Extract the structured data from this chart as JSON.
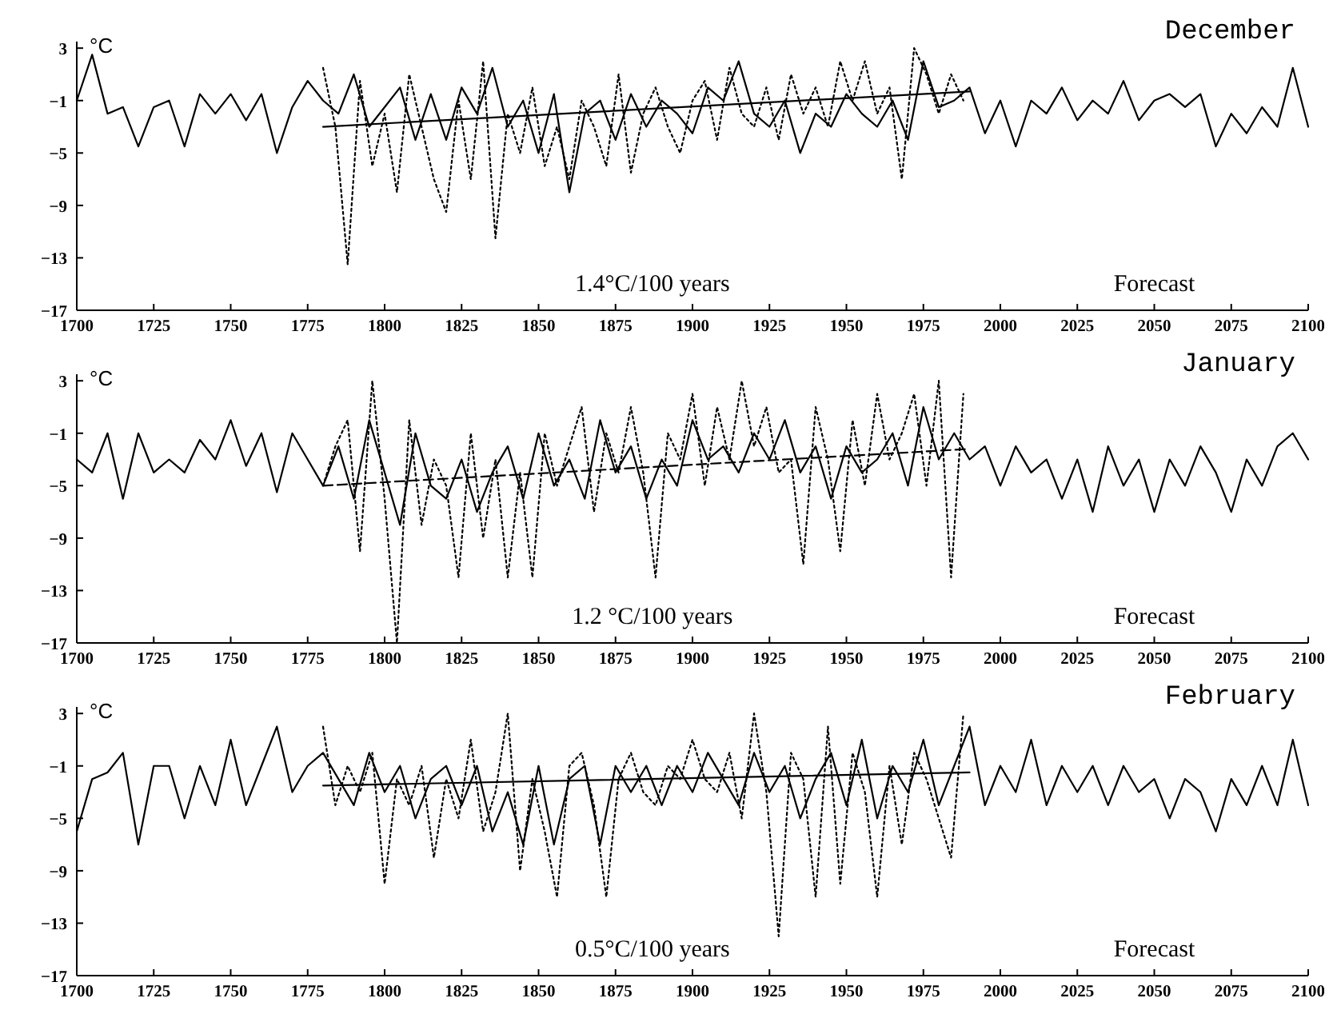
{
  "chart_data": [
    {
      "type": "line",
      "title": "December",
      "ylabel": "°C",
      "xlim": [
        1700,
        2100
      ],
      "xticks": [
        1700,
        1725,
        1750,
        1775,
        1800,
        1825,
        1850,
        1875,
        1900,
        1925,
        1950,
        1975,
        2000,
        2025,
        2050,
        2075,
        2100
      ],
      "ylim": [
        -17,
        3.5
      ],
      "yticks": [
        3,
        -1,
        -5,
        -9,
        -13,
        -17
      ],
      "grid": false,
      "marker": "none",
      "annotations": [
        "1.4°C/100 years",
        "Forecast"
      ],
      "x": [
        1700,
        1705,
        1710,
        1715,
        1720,
        1725,
        1730,
        1735,
        1740,
        1745,
        1750,
        1755,
        1760,
        1765,
        1770,
        1775,
        1780,
        1785,
        1790,
        1795,
        1800,
        1805,
        1810,
        1815,
        1820,
        1825,
        1830,
        1835,
        1840,
        1845,
        1850,
        1855,
        1860,
        1865,
        1870,
        1875,
        1880,
        1885,
        1890,
        1895,
        1900,
        1905,
        1910,
        1915,
        1920,
        1925,
        1930,
        1935,
        1940,
        1945,
        1950,
        1955,
        1960,
        1965,
        1970,
        1975,
        1980,
        1985,
        1990,
        1995,
        2000,
        2005,
        2010,
        2015,
        2020,
        2025,
        2030,
        2035,
        2040,
        2045,
        2050,
        2055,
        2060,
        2065,
        2070,
        2075,
        2080,
        2085,
        2090,
        2095,
        2100
      ],
      "series": [
        {
          "color": "#000000",
          "line_style": "solid",
          "values": [
            -1,
            2.5,
            -2,
            -1.5,
            -4.5,
            -1.5,
            -1,
            -4.5,
            -0.5,
            -2,
            -0.5,
            -2.5,
            -0.5,
            -5,
            -1.5,
            0.5,
            -1,
            -2,
            1,
            -3,
            -1.5,
            0,
            -4,
            -0.5,
            -4,
            0,
            -2,
            1.5,
            -3,
            -1,
            -5,
            -0.5,
            -8,
            -2,
            -1,
            -4,
            -0.5,
            -3,
            -1,
            -2,
            -3.5,
            0,
            -1,
            2,
            -2,
            -3,
            -1,
            -5,
            -2,
            -3,
            -0.5,
            -2,
            -3,
            -1,
            -4,
            2,
            -1.5,
            -1,
            0,
            -3.5,
            -1,
            -4.5,
            -1,
            -2,
            0,
            -2.5,
            -1,
            -2,
            0.5,
            -2.5,
            -1,
            -0.5,
            -1.5,
            -0.5,
            -4.5,
            -2,
            -3.5,
            -1.5,
            -3,
            1.5,
            -3
          ]
        },
        {
          "color": "#000000",
          "line_style": "dotted",
          "x": [
            1780,
            1784,
            1788,
            1792,
            1796,
            1800,
            1804,
            1808,
            1812,
            1816,
            1820,
            1824,
            1828,
            1832,
            1836,
            1840,
            1844,
            1848,
            1852,
            1856,
            1860,
            1864,
            1868,
            1872,
            1876,
            1880,
            1884,
            1888,
            1892,
            1896,
            1900,
            1904,
            1908,
            1912,
            1916,
            1920,
            1924,
            1928,
            1932,
            1936,
            1940,
            1944,
            1948,
            1952,
            1956,
            1960,
            1964,
            1968,
            1972,
            1976,
            1980,
            1984,
            1988
          ],
          "values": [
            1.5,
            -3,
            -13.5,
            0.5,
            -6,
            -2,
            -8,
            1,
            -3,
            -7,
            -9.5,
            -1,
            -7,
            2,
            -11.5,
            -2,
            -5,
            0,
            -6,
            -3,
            -7,
            -1,
            -3,
            -6,
            1,
            -6.5,
            -2,
            0,
            -3,
            -5,
            -1,
            0.5,
            -4,
            1.5,
            -2,
            -3,
            0,
            -4,
            1,
            -2,
            0,
            -3,
            2,
            -1,
            2,
            -2,
            0,
            -7,
            3,
            1,
            -2,
            1,
            -1
          ]
        },
        {
          "color": "#000000",
          "line_style": "solid",
          "x": [
            1780,
            1990
          ],
          "values": [
            -3,
            -0.3
          ]
        }
      ]
    },
    {
      "type": "line",
      "title": "January",
      "ylabel": "°C",
      "xlim": [
        1700,
        2100
      ],
      "xticks": [
        1700,
        1725,
        1750,
        1775,
        1800,
        1825,
        1850,
        1875,
        1900,
        1925,
        1950,
        1975,
        2000,
        2025,
        2050,
        2075,
        2100
      ],
      "ylim": [
        -17,
        3.5
      ],
      "yticks": [
        3,
        -1,
        -5,
        -9,
        -13,
        -17
      ],
      "grid": false,
      "marker": "none",
      "annotations": [
        "1.2 °C/100 years",
        "Forecast"
      ],
      "x": [
        1700,
        1705,
        1710,
        1715,
        1720,
        1725,
        1730,
        1735,
        1740,
        1745,
        1750,
        1755,
        1760,
        1765,
        1770,
        1775,
        1780,
        1785,
        1790,
        1795,
        1800,
        1805,
        1810,
        1815,
        1820,
        1825,
        1830,
        1835,
        1840,
        1845,
        1850,
        1855,
        1860,
        1865,
        1870,
        1875,
        1880,
        1885,
        1890,
        1895,
        1900,
        1905,
        1910,
        1915,
        1920,
        1925,
        1930,
        1935,
        1940,
        1945,
        1950,
        1955,
        1960,
        1965,
        1970,
        1975,
        1980,
        1985,
        1990,
        1995,
        2000,
        2005,
        2010,
        2015,
        2020,
        2025,
        2030,
        2035,
        2040,
        2045,
        2050,
        2055,
        2060,
        2065,
        2070,
        2075,
        2080,
        2085,
        2090,
        2095,
        2100
      ],
      "series": [
        {
          "color": "#000000",
          "line_style": "solid",
          "values": [
            -3,
            -4,
            -1,
            -6,
            -1,
            -4,
            -3,
            -4,
            -1.5,
            -3,
            0,
            -3.5,
            -1,
            -5.5,
            -1,
            -3,
            -5,
            -2,
            -6,
            0,
            -4,
            -8,
            -1,
            -5,
            -6,
            -3,
            -7,
            -4,
            -2,
            -6,
            -1,
            -5,
            -3,
            -6,
            0,
            -4,
            -2,
            -6,
            -3,
            -5,
            0,
            -3,
            -2,
            -4,
            -1,
            -3,
            0,
            -4,
            -2,
            -6,
            -2,
            -4,
            -3,
            -1,
            -5,
            1,
            -3,
            -1,
            -3,
            -2,
            -5,
            -2,
            -4,
            -3,
            -6,
            -3,
            -7,
            -2,
            -5,
            -3,
            -7,
            -3,
            -5,
            -2,
            -4,
            -7,
            -3,
            -5,
            -2,
            -1,
            -3
          ]
        },
        {
          "color": "#000000",
          "line_style": "dotted",
          "x": [
            1780,
            1784,
            1788,
            1792,
            1796,
            1800,
            1804,
            1808,
            1812,
            1816,
            1820,
            1824,
            1828,
            1832,
            1836,
            1840,
            1844,
            1848,
            1852,
            1856,
            1860,
            1864,
            1868,
            1872,
            1876,
            1880,
            1884,
            1888,
            1892,
            1896,
            1900,
            1904,
            1908,
            1912,
            1916,
            1920,
            1924,
            1928,
            1932,
            1936,
            1940,
            1944,
            1948,
            1952,
            1956,
            1960,
            1964,
            1968,
            1972,
            1976,
            1980,
            1984,
            1988
          ],
          "values": [
            -5,
            -2,
            0,
            -10,
            3,
            -6,
            -17,
            0,
            -8,
            -3,
            -5,
            -12,
            -1,
            -9,
            -3,
            -12,
            -4,
            -12,
            -1,
            -5,
            -2,
            1,
            -7,
            -1,
            -4,
            1,
            -4,
            -12,
            -1,
            -3,
            2,
            -5,
            1,
            -3,
            3,
            -2,
            1,
            -4,
            -3,
            -11,
            1,
            -3,
            -10,
            0,
            -5,
            2,
            -3,
            -1,
            2,
            -5,
            3,
            -12,
            2
          ]
        },
        {
          "color": "#000000",
          "line_style": "dashed",
          "x": [
            1780,
            1990
          ],
          "values": [
            -5,
            -2.2
          ]
        }
      ]
    },
    {
      "type": "line",
      "title": "February",
      "ylabel": "°C",
      "xlim": [
        1700,
        2100
      ],
      "xticks": [
        1700,
        1725,
        1750,
        1775,
        1800,
        1825,
        1850,
        1875,
        1900,
        1925,
        1950,
        1975,
        2000,
        2025,
        2050,
        2075,
        2100
      ],
      "ylim": [
        -17,
        3.5
      ],
      "yticks": [
        3,
        -1,
        -5,
        -9,
        -13,
        -17
      ],
      "grid": false,
      "marker": "none",
      "annotations": [
        "0.5°C/100 years",
        "Forecast"
      ],
      "x": [
        1700,
        1705,
        1710,
        1715,
        1720,
        1725,
        1730,
        1735,
        1740,
        1745,
        1750,
        1755,
        1760,
        1765,
        1770,
        1775,
        1780,
        1785,
        1790,
        1795,
        1800,
        1805,
        1810,
        1815,
        1820,
        1825,
        1830,
        1835,
        1840,
        1845,
        1850,
        1855,
        1860,
        1865,
        1870,
        1875,
        1880,
        1885,
        1890,
        1895,
        1900,
        1905,
        1910,
        1915,
        1920,
        1925,
        1930,
        1935,
        1940,
        1945,
        1950,
        1955,
        1960,
        1965,
        1970,
        1975,
        1980,
        1985,
        1990,
        1995,
        2000,
        2005,
        2010,
        2015,
        2020,
        2025,
        2030,
        2035,
        2040,
        2045,
        2050,
        2055,
        2060,
        2065,
        2070,
        2075,
        2080,
        2085,
        2090,
        2095,
        2100
      ],
      "series": [
        {
          "color": "#000000",
          "line_style": "solid",
          "values": [
            -6,
            -2,
            -1.5,
            0,
            -7,
            -1,
            -1,
            -5,
            -1,
            -4,
            1,
            -4,
            -1,
            2,
            -3,
            -1,
            0,
            -2,
            -4,
            0,
            -3,
            -1,
            -5,
            -2,
            -1,
            -4,
            -1,
            -6,
            -3,
            -7,
            -1,
            -7,
            -2,
            -1,
            -7,
            -1,
            -3,
            -1,
            -4,
            -1,
            -3,
            0,
            -2,
            -4,
            0,
            -3,
            -1,
            -5,
            -2,
            0,
            -4,
            1,
            -5,
            -1,
            -3,
            1,
            -4,
            -1,
            2,
            -4,
            -1,
            -3,
            1,
            -4,
            -1,
            -3,
            -1,
            -4,
            -1,
            -3,
            -2,
            -5,
            -2,
            -3,
            -6,
            -2,
            -4,
            -1,
            -4,
            1,
            -4
          ]
        },
        {
          "color": "#000000",
          "line_style": "dotted",
          "x": [
            1780,
            1784,
            1788,
            1792,
            1796,
            1800,
            1804,
            1808,
            1812,
            1816,
            1820,
            1824,
            1828,
            1832,
            1836,
            1840,
            1844,
            1848,
            1852,
            1856,
            1860,
            1864,
            1868,
            1872,
            1876,
            1880,
            1884,
            1888,
            1892,
            1896,
            1900,
            1904,
            1908,
            1912,
            1916,
            1920,
            1924,
            1928,
            1932,
            1936,
            1940,
            1944,
            1948,
            1952,
            1956,
            1960,
            1964,
            1968,
            1972,
            1976,
            1980,
            1984,
            1988
          ],
          "values": [
            2,
            -4,
            -1,
            -3,
            0,
            -10,
            -2,
            -4,
            -1,
            -8,
            -2,
            -5,
            1,
            -6,
            -3,
            3,
            -9,
            -2,
            -6,
            -11,
            -1,
            0,
            -4,
            -11,
            -2,
            0,
            -3,
            -4,
            -1,
            -2,
            1,
            -2,
            -3,
            0,
            -5,
            3,
            -3,
            -14,
            0,
            -2,
            -11,
            2,
            -10,
            0,
            -3,
            -11,
            -1,
            -7,
            0,
            -2,
            -5,
            -8,
            3
          ]
        },
        {
          "color": "#000000",
          "line_style": "solid",
          "x": [
            1780,
            1990
          ],
          "values": [
            -2.5,
            -1.5
          ]
        }
      ]
    }
  ]
}
